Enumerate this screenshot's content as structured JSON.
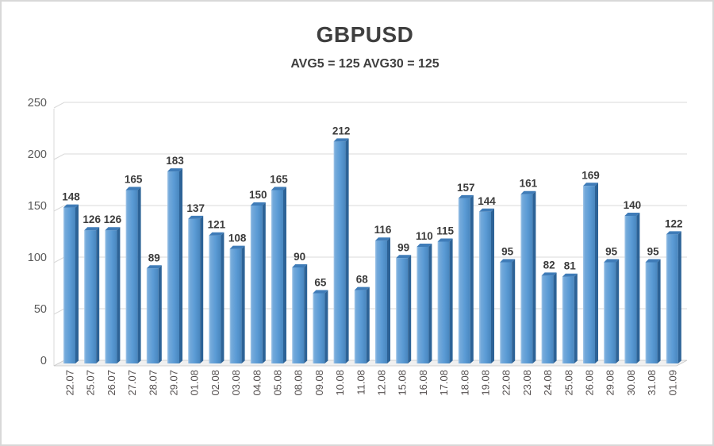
{
  "header": {
    "title": "GBPUSD",
    "subtitle": "AVG5 = 125 AVG30 = 125"
  },
  "chart_data": {
    "type": "bar",
    "style": "3d-column",
    "title": "GBPUSD",
    "subtitle": "AVG5 = 125 AVG30 = 125",
    "categories": [
      "22.07",
      "25.07",
      "26.07",
      "27.07",
      "28.07",
      "29.07",
      "01.08",
      "02.08",
      "03.08",
      "04.08",
      "05.08",
      "08.08",
      "09.08",
      "10.08",
      "11.08",
      "12.08",
      "15.08",
      "16.08",
      "17.08",
      "18.08",
      "19.08",
      "22.08",
      "23.08",
      "24.08",
      "25.08",
      "26.08",
      "29.08",
      "30.08",
      "31.08",
      "01.09"
    ],
    "values": [
      148,
      126,
      126,
      165,
      89,
      183,
      137,
      121,
      108,
      150,
      165,
      90,
      65,
      212,
      68,
      116,
      99,
      110,
      115,
      157,
      144,
      95,
      161,
      82,
      81,
      169,
      95,
      140,
      95,
      122
    ],
    "xlabel": "",
    "ylabel": "",
    "ylim": [
      0,
      250
    ],
    "yticks": [
      0,
      50,
      100,
      150,
      200,
      250
    ],
    "grid": true,
    "legend": false,
    "data_labels": true,
    "colors": {
      "bar_face": "#5B9BD5",
      "bar_face_light": "#A3C7E8",
      "bar_face_dark": "#4886BE",
      "bar_top": "#3F7CB8",
      "bar_side": "#2D6397",
      "gridline": "#D9D9D9",
      "floor_fill": "#F0F0F0",
      "floor_edge": "#C6C6C6",
      "value_label": "#3B3B3B",
      "tick_label": "#595959",
      "x_label": "#555050",
      "title_text": "#3F3F3F"
    }
  }
}
